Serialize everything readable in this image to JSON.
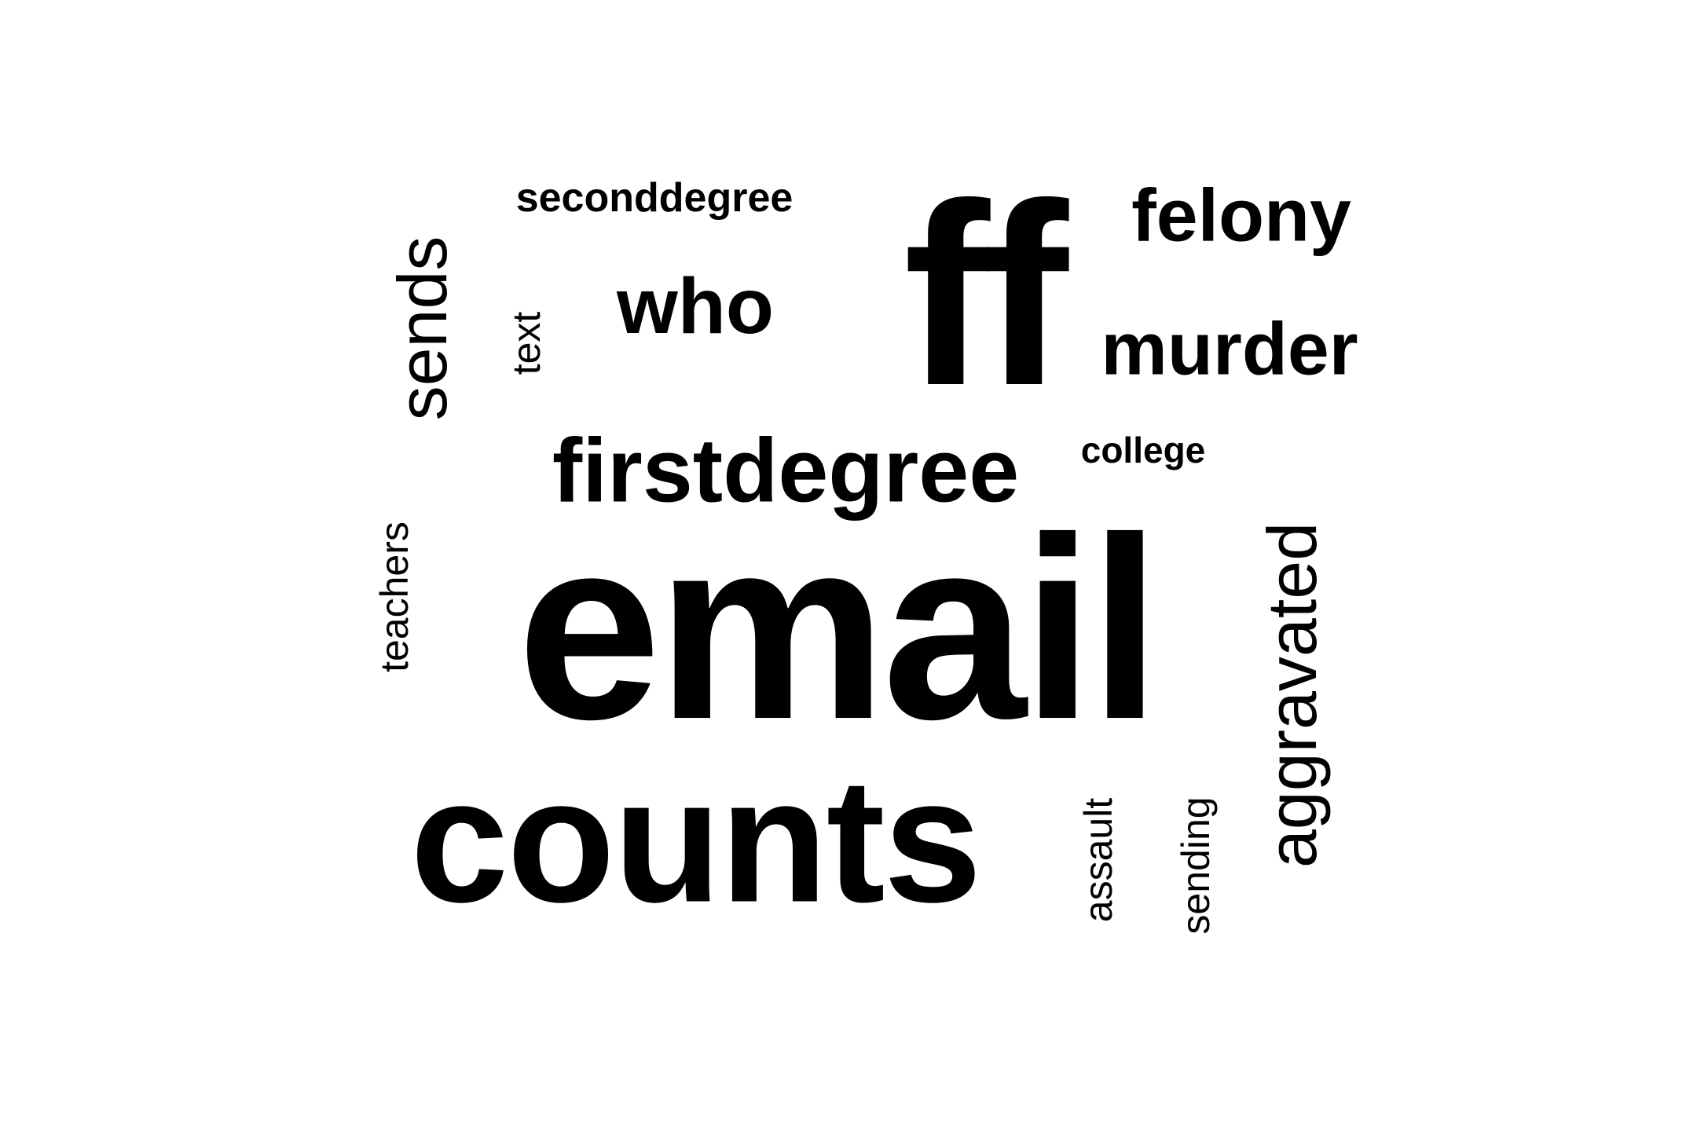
{
  "words": [
    {
      "text": "email"
    },
    {
      "text": "ff"
    },
    {
      "text": "counts"
    },
    {
      "text": "firstdegree"
    },
    {
      "text": "murder"
    },
    {
      "text": "felony"
    },
    {
      "text": "who"
    },
    {
      "text": "seconddegree"
    },
    {
      "text": "college"
    },
    {
      "text": "sends"
    },
    {
      "text": "text"
    },
    {
      "text": "teachers"
    },
    {
      "text": "aggravated"
    },
    {
      "text": "assault"
    },
    {
      "text": "sending"
    }
  ],
  "colors": {
    "background": "#ffffff",
    "text": "#000000"
  }
}
